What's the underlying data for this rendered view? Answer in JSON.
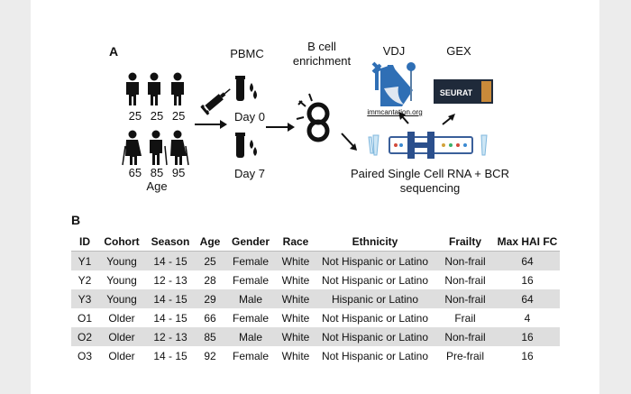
{
  "panels": {
    "a": "A",
    "b": "B"
  },
  "figure": {
    "young_ages": [
      "25",
      "25",
      "25"
    ],
    "old_ages": [
      "65",
      "85",
      "95"
    ],
    "age_axis": "Age",
    "pbmc": "PBMC",
    "day0": "Day 0",
    "day7": "Day 7",
    "bcell_line1": "B cell",
    "bcell_line2": "enrichment",
    "vdj": "VDJ",
    "gex": "GEX",
    "immcantation": "immcantation.org",
    "seurat": "SEURAT",
    "seq_line1": "Paired Single Cell RNA + BCR",
    "seq_line2": "sequencing"
  },
  "table": {
    "headers": [
      "ID",
      "Cohort",
      "Season",
      "Age",
      "Gender",
      "Race",
      "Ethnicity",
      "Frailty",
      "Max HAI FC"
    ],
    "rows": [
      [
        "Y1",
        "Young",
        "14 - 15",
        "25",
        "Female",
        "White",
        "Not Hispanic or Latino",
        "Non-frail",
        "64"
      ],
      [
        "Y2",
        "Young",
        "12 - 13",
        "28",
        "Female",
        "White",
        "Not Hispanic or Latino",
        "Non-frail",
        "16"
      ],
      [
        "Y3",
        "Young",
        "14 - 15",
        "29",
        "Male",
        "White",
        "Hispanic or Latino",
        "Non-frail",
        "64"
      ],
      [
        "O1",
        "Older",
        "14 - 15",
        "66",
        "Female",
        "White",
        "Not Hispanic or Latino",
        "Frail",
        "4"
      ],
      [
        "O2",
        "Older",
        "12 - 13",
        "85",
        "Male",
        "White",
        "Not Hispanic or Latino",
        "Non-frail",
        "16"
      ],
      [
        "O3",
        "Older",
        "14 - 15",
        "92",
        "Female",
        "White",
        "Not Hispanic or Latino",
        "Pre-frail",
        "16"
      ]
    ]
  },
  "colors": {
    "shade_row": "#dedede",
    "wizard_blue": "#2f6fb5",
    "seurat_bg": "#1f2a3a",
    "blood_red": "#b22222"
  }
}
